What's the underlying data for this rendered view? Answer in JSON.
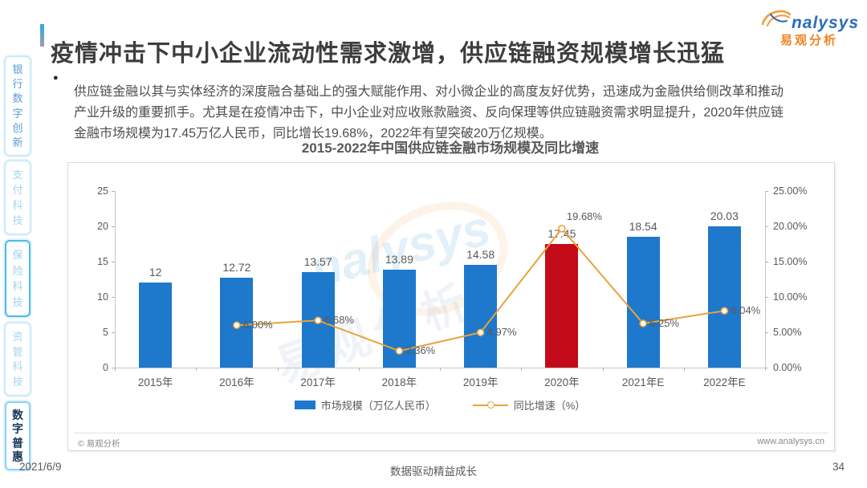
{
  "header": {
    "title": "疫情冲击下中小企业流动性需求激增，供应链融资规模增长迅猛",
    "logo_brand": "nalysys",
    "logo_brand_cn": "易观分析"
  },
  "sidebar": {
    "items": [
      {
        "label": "银行数字创新",
        "state": "default"
      },
      {
        "label": "支付科技",
        "state": "faded"
      },
      {
        "label": "保险科技",
        "state": "outlined"
      },
      {
        "label": "资管科技",
        "state": "faded"
      },
      {
        "label": "数字普惠",
        "state": "active"
      }
    ]
  },
  "body": {
    "bullet": "●",
    "paragraph": "供应链金融以其与实体经济的深度融合基础上的强大赋能作用、对小微企业的高度友好优势，迅速成为金融供给侧改革和推动产业升级的重要抓手。尤其是在疫情冲击下，中小企业对应收账款融资、反向保理等供应链融资需求明显提升，2020年供应链金融市场规模为17.45万亿人民币，同比增长19.68%，2022年有望突破20万亿规模。"
  },
  "chart_data": {
    "type": "bar+line",
    "title": "2015-2022年中国供应链金融市场规模及同比增速",
    "categories": [
      "2015年",
      "2016年",
      "2017年",
      "2018年",
      "2019年",
      "2020年",
      "2021年E",
      "2022年E"
    ],
    "series": [
      {
        "name": "市场规模（万亿人民币）",
        "type": "bar",
        "values": [
          12,
          12.72,
          13.57,
          13.89,
          14.58,
          17.45,
          18.54,
          20.03
        ],
        "value_labels": [
          "12",
          "12.72",
          "13.57",
          "13.89",
          "14.58",
          "17.45",
          "18.54",
          "20.03"
        ],
        "color": "#1e78cc",
        "highlight_index": 5,
        "highlight_color": "#c40b1a"
      },
      {
        "name": "同比增速（%）",
        "type": "line",
        "values": [
          null,
          6.0,
          6.68,
          2.36,
          4.97,
          19.68,
          6.25,
          8.04
        ],
        "value_labels": [
          null,
          "6.00%",
          "6.68%",
          "2.36%",
          "4.97%",
          "19.68%",
          "6.25%",
          "8.04%"
        ],
        "color": "#e8a23c"
      }
    ],
    "left_axis": {
      "min": 0,
      "max": 25,
      "tick_values": [
        0,
        5,
        10,
        15,
        20,
        25
      ],
      "tick_labels": [
        "0",
        "5",
        "10",
        "15",
        "20",
        "25"
      ]
    },
    "right_axis": {
      "min": 0,
      "max": 25,
      "tick_values": [
        0,
        5,
        10,
        15,
        20,
        25
      ],
      "tick_labels": [
        "0.00%",
        "5.00%",
        "10.00%",
        "15.00%",
        "20.00%",
        "25.00%"
      ]
    },
    "grid": false,
    "legend_position": "bottom"
  },
  "chart_card": {
    "copyright": "© 易观分析",
    "website": "www.analysys.cn"
  },
  "footer": {
    "date": "2021/6/9",
    "slogan": "数据驱动精益成长",
    "page_number": "34"
  }
}
